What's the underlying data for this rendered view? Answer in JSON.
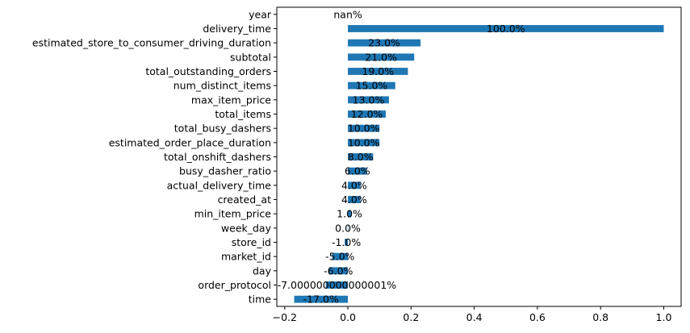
{
  "chart_data": {
    "type": "bar",
    "orientation": "horizontal",
    "bar_color": "#1f77b4",
    "grid": false,
    "xlim": [
      -0.225,
      1.055
    ],
    "x_ticks": [
      -0.2,
      0.0,
      0.2,
      0.4,
      0.6,
      0.8,
      1.0
    ],
    "x_tick_labels": [
      "−0.2",
      "0.0",
      "0.2",
      "0.4",
      "0.6",
      "0.8",
      "1.0"
    ],
    "categories": [
      "year",
      "delivery_time",
      "estimated_store_to_consumer_driving_duration",
      "subtotal",
      "total_outstanding_orders",
      "num_distinct_items",
      "max_item_price",
      "total_items",
      "total_busy_dashers",
      "estimated_order_place_duration",
      "total_onshift_dashers",
      "busy_dasher_ratio",
      "actual_delivery_time",
      "created_at",
      "min_item_price",
      "week_day",
      "store_id",
      "market_id",
      "day",
      "order_protocol",
      "time"
    ],
    "values": [
      null,
      1.0,
      0.23,
      0.21,
      0.19,
      0.15,
      0.13,
      0.12,
      0.1,
      0.1,
      0.08,
      0.06,
      0.04,
      0.04,
      0.01,
      0.0,
      -0.01,
      -0.05,
      -0.06,
      -0.07,
      -0.17
    ],
    "data_labels": [
      "nan%",
      "100.0%",
      "23.0%",
      "21.0%",
      "19.0%",
      "15.0%",
      "13.0%",
      "12.0%",
      "10.0%",
      "10.0%",
      "8.0%",
      "6.0%",
      "4.0%",
      "4.0%",
      "1.0%",
      "0.0%",
      "-1.0%",
      "-5.0%",
      "-6.0%",
      "-7.000000000000001%",
      "-17.0%"
    ]
  }
}
